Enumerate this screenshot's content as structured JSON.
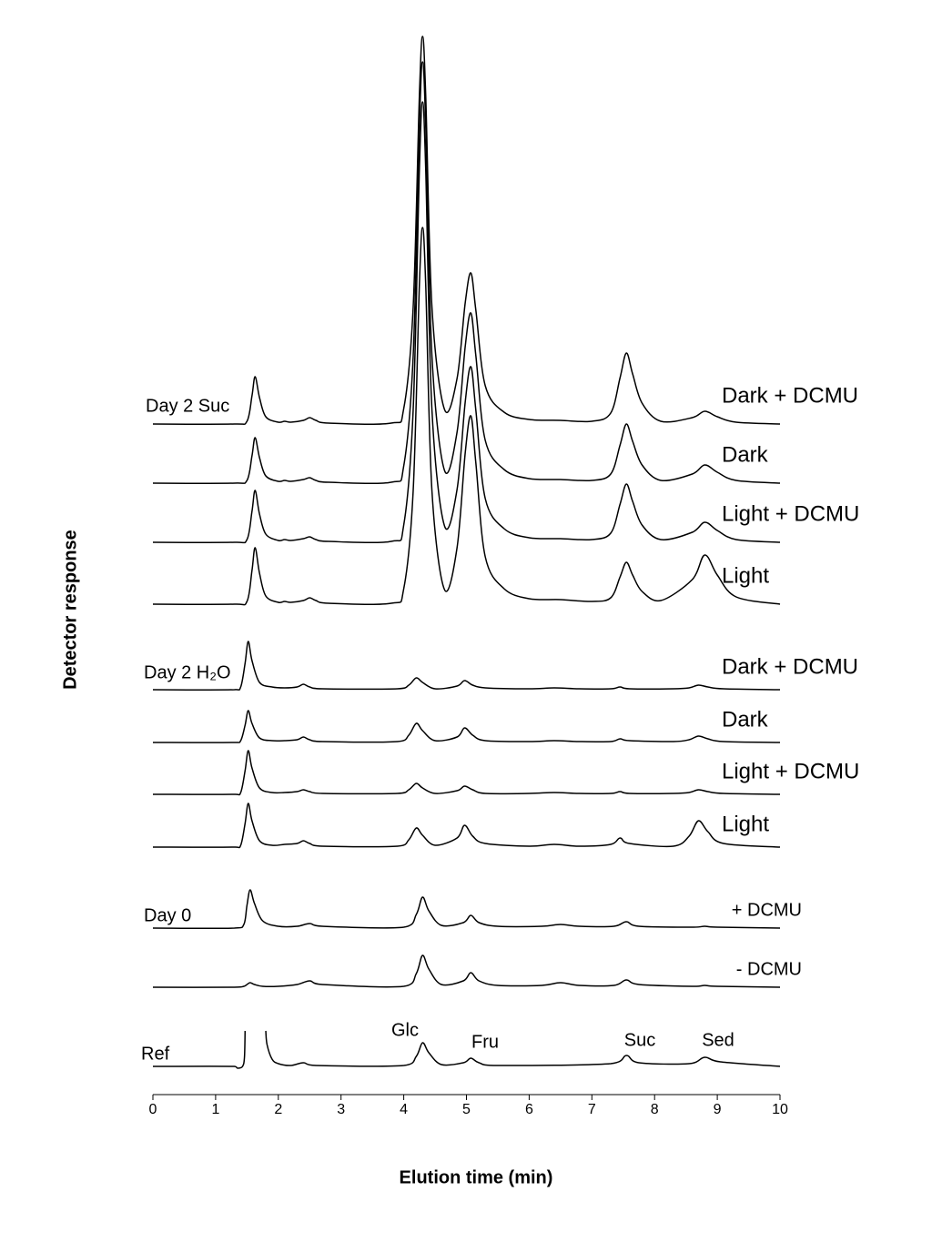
{
  "chart_data": {
    "type": "line",
    "xlabel": "Elution time (min)",
    "ylabel": "Detector response",
    "xlim": [
      0,
      10
    ],
    "xticks": [
      0,
      1,
      2,
      3,
      4,
      5,
      6,
      7,
      8,
      9,
      10
    ],
    "color": "#000000",
    "peak_labels": [
      "Glc",
      "Fru",
      "Suc",
      "Sed"
    ],
    "groups": [
      {
        "label": "Day 2 Suc",
        "series": [
          {
            "name": "Dark + DCMU",
            "x": [
              0,
              1.3,
              1.5,
              1.58,
              1.63,
              1.7,
              1.8,
              2.0,
              2.1,
              2.2,
              2.4,
              2.5,
              2.6,
              2.8,
              3.8,
              4.0,
              4.15,
              4.25,
              4.3,
              4.35,
              4.45,
              4.65,
              4.85,
              4.98,
              5.07,
              5.15,
              5.3,
              5.6,
              6.0,
              6.5,
              7.0,
              7.3,
              7.45,
              7.55,
              7.65,
              7.8,
              8.1,
              8.6,
              8.8,
              9.0,
              9.3,
              10
            ],
            "values": [
              0,
              0,
              3,
              31,
              52,
              29,
              8,
              2,
              3,
              2,
              4,
              7,
              4,
              1,
              1,
              17,
              128,
              362,
              426,
              362,
              128,
              16,
              50,
              133,
              166,
              125,
              42,
              13,
              5,
              4,
              3,
              12,
              51,
              78,
              55,
              23,
              3,
              7,
              14,
              8,
              2,
              0
            ]
          },
          {
            "name": "Dark",
            "x": [
              0,
              1.3,
              1.5,
              1.58,
              1.63,
              1.7,
              1.8,
              2.0,
              2.1,
              2.2,
              2.4,
              2.5,
              2.6,
              2.8,
              3.8,
              4.0,
              4.15,
              4.25,
              4.3,
              4.35,
              4.45,
              4.65,
              4.85,
              4.98,
              5.07,
              5.15,
              5.3,
              5.6,
              6.0,
              6.5,
              7.0,
              7.3,
              7.45,
              7.55,
              7.65,
              7.8,
              8.1,
              8.6,
              8.8,
              9.0,
              9.3,
              10
            ],
            "values": [
              0,
              0,
              3,
              30,
              50,
              28,
              8,
              2,
              3,
              2,
              4,
              6,
              3,
              1,
              1,
              19,
              139,
              394,
              463,
              394,
              139,
              14,
              56,
              150,
              187,
              140,
              47,
              15,
              5,
              4,
              3,
              10,
              42,
              65,
              46,
              20,
              3,
              10,
              20,
              12,
              3,
              0
            ]
          },
          {
            "name": "Light + DCMU",
            "x": [
              0,
              1.3,
              1.5,
              1.58,
              1.63,
              1.7,
              1.8,
              2.0,
              2.1,
              2.2,
              2.4,
              2.5,
              2.6,
              2.8,
              3.8,
              4.0,
              4.15,
              4.25,
              4.3,
              4.35,
              4.45,
              4.65,
              4.85,
              4.98,
              5.07,
              5.15,
              5.3,
              5.6,
              6.0,
              6.5,
              7.0,
              7.3,
              7.45,
              7.55,
              7.65,
              7.8,
              8.1,
              8.6,
              8.8,
              9.0,
              9.3,
              10
            ],
            "values": [
              0,
              0,
              3,
              34,
              57,
              31,
              9,
              2,
              3,
              2,
              4,
              6,
              3,
              1,
              1,
              19,
              145,
              411,
              484,
              411,
              145,
              18,
              58,
              154,
              193,
              145,
              48,
              15,
              5,
              4,
              3,
              10,
              42,
              64,
              45,
              19,
              3,
              11,
              22,
              13,
              3,
              0
            ]
          },
          {
            "name": "Light",
            "x": [
              0,
              1.3,
              1.5,
              1.58,
              1.63,
              1.7,
              1.8,
              2.0,
              2.1,
              2.2,
              2.4,
              2.5,
              2.6,
              2.8,
              3.8,
              4.0,
              4.15,
              4.25,
              4.3,
              4.35,
              4.45,
              4.65,
              4.85,
              4.98,
              5.07,
              5.15,
              5.3,
              5.6,
              6.0,
              6.5,
              7.0,
              7.3,
              7.45,
              7.55,
              7.65,
              7.8,
              8.1,
              8.6,
              8.8,
              9.0,
              9.3,
              10
            ],
            "values": [
              0,
              0,
              3,
              37,
              62,
              34,
              9,
              2,
              3,
              2,
              4,
              7,
              4,
              1,
              1,
              17,
              124,
              352,
              414,
              352,
              124,
              16,
              62,
              166,
              207,
              155,
              52,
              17,
              6,
              5,
              3,
              7,
              30,
              46,
              32,
              14,
              4,
              27,
              54,
              32,
              8,
              0
            ]
          }
        ]
      },
      {
        "label": "Day 2 H₂O",
        "series": [
          {
            "name": "Dark + DCMU",
            "x": [
              0,
              1.3,
              1.4,
              1.47,
              1.52,
              1.58,
              1.7,
              1.9,
              2.1,
              2.3,
              2.4,
              2.5,
              2.7,
              3.9,
              4.08,
              4.2,
              4.3,
              4.5,
              4.85,
              4.97,
              5.1,
              5.3,
              6.0,
              6.4,
              6.8,
              7.3,
              7.45,
              7.6,
              8.3,
              8.55,
              8.7,
              8.85,
              9.1,
              10
            ],
            "values": [
              0,
              0,
              3,
              29,
              53,
              32,
              8,
              3,
              2,
              3,
              6,
              3,
              1,
              1,
              5,
              13,
              8,
              1,
              4,
              10,
              5,
              2,
              1,
              2,
              1,
              1,
              3,
              1,
              1,
              2,
              5,
              3,
              1,
              0
            ]
          },
          {
            "name": "Dark",
            "x": [
              0,
              1.3,
              1.4,
              1.47,
              1.52,
              1.58,
              1.7,
              1.9,
              2.1,
              2.3,
              2.4,
              2.5,
              2.7,
              3.9,
              4.08,
              4.2,
              4.3,
              4.5,
              4.85,
              4.97,
              5.1,
              5.3,
              6.0,
              6.4,
              6.8,
              7.3,
              7.45,
              7.6,
              8.3,
              8.55,
              8.7,
              8.85,
              9.1,
              10
            ],
            "values": [
              0,
              0,
              2,
              19,
              35,
              21,
              5,
              2,
              2,
              3,
              6,
              3,
              1,
              1,
              8,
              21,
              13,
              2,
              6,
              16,
              8,
              2,
              1,
              2,
              1,
              1,
              4,
              2,
              1,
              3,
              7,
              4,
              1,
              0
            ]
          },
          {
            "name": "Light + DCMU",
            "x": [
              0,
              1.3,
              1.4,
              1.47,
              1.52,
              1.58,
              1.7,
              1.9,
              2.1,
              2.3,
              2.4,
              2.5,
              2.7,
              3.9,
              4.08,
              4.2,
              4.3,
              4.5,
              4.85,
              4.97,
              5.1,
              5.3,
              6.0,
              6.4,
              6.8,
              7.3,
              7.45,
              7.6,
              8.3,
              8.55,
              8.7,
              8.85,
              9.1,
              10
            ],
            "values": [
              0,
              0,
              2,
              26,
              48,
              29,
              7,
              2,
              2,
              3,
              5,
              3,
              1,
              1,
              5,
              12,
              7,
              1,
              4,
              9,
              5,
              1,
              1,
              2,
              1,
              1,
              3,
              1,
              1,
              2,
              5,
              3,
              1,
              0
            ]
          },
          {
            "name": "Light",
            "x": [
              0,
              1.3,
              1.4,
              1.47,
              1.52,
              1.58,
              1.7,
              1.9,
              2.1,
              2.3,
              2.4,
              2.5,
              2.7,
              3.9,
              4.08,
              4.2,
              4.3,
              4.5,
              4.85,
              4.97,
              5.1,
              5.3,
              6.0,
              6.4,
              6.8,
              7.3,
              7.45,
              7.6,
              8.3,
              8.55,
              8.7,
              8.85,
              9.1,
              10
            ],
            "values": [
              0,
              0,
              2,
              26,
              48,
              29,
              7,
              2,
              3,
              4,
              7,
              4,
              1,
              1,
              8,
              21,
              13,
              2,
              10,
              24,
              12,
              4,
              1,
              3,
              1,
              3,
              10,
              4,
              1,
              12,
              29,
              17,
              4,
              0
            ]
          }
        ]
      },
      {
        "label": "Day 0",
        "series": [
          {
            "name": "+ DCMU",
            "x": [
              0,
              1.3,
              1.45,
              1.5,
              1.55,
              1.62,
              1.75,
              2.0,
              2.3,
              2.5,
              2.7,
              4.0,
              4.2,
              4.3,
              4.4,
              4.6,
              4.95,
              5.07,
              5.2,
              5.5,
              6.2,
              6.5,
              6.8,
              7.35,
              7.55,
              7.75,
              8.6,
              8.8,
              9.0,
              10
            ],
            "values": [
              0,
              0,
              4,
              25,
              42,
              27,
              8,
              2,
              2,
              5,
              2,
              1,
              15,
              34,
              19,
              3,
              6,
              14,
              6,
              2,
              2,
              4,
              2,
              2,
              7,
              2,
              1,
              2,
              1,
              0
            ]
          },
          {
            "name": "- DCMU",
            "x": [
              0,
              1.3,
              1.45,
              1.5,
              1.55,
              1.62,
              1.75,
              2.0,
              2.3,
              2.5,
              2.7,
              4.0,
              4.2,
              4.3,
              4.4,
              4.6,
              4.95,
              5.07,
              5.2,
              5.5,
              6.2,
              6.5,
              6.8,
              7.35,
              7.55,
              7.75,
              8.6,
              8.8,
              9.0,
              10
            ],
            "values": [
              0,
              0,
              1,
              3,
              5,
              3,
              1,
              1,
              3,
              7,
              3,
              1,
              15,
              35,
              20,
              3,
              7,
              16,
              7,
              2,
              2,
              5,
              2,
              2,
              8,
              3,
              1,
              2,
              1,
              0
            ]
          }
        ]
      },
      {
        "label": "Ref",
        "series": [
          {
            "x": [
              0,
              1.3,
              1.35,
              1.43,
              1.46,
              1.47,
              1.6,
              1.8,
              1.82,
              1.9,
              2.0,
              2.2,
              2.4,
              2.6,
              4.0,
              4.2,
              4.3,
              4.4,
              4.6,
              4.95,
              5.07,
              5.2,
              5.5,
              7.3,
              7.55,
              7.75,
              8.55,
              8.8,
              9.05,
              10
            ],
            "values": [
              0,
              0,
              -2,
              0,
              10,
              39,
              null,
              39,
              24,
              8,
              3,
              1,
              4,
              1,
              1,
              11,
              26,
              15,
              2,
              4,
              9,
              4,
              1,
              3,
              12,
              4,
              3,
              10,
              5,
              0
            ]
          }
        ]
      }
    ]
  }
}
